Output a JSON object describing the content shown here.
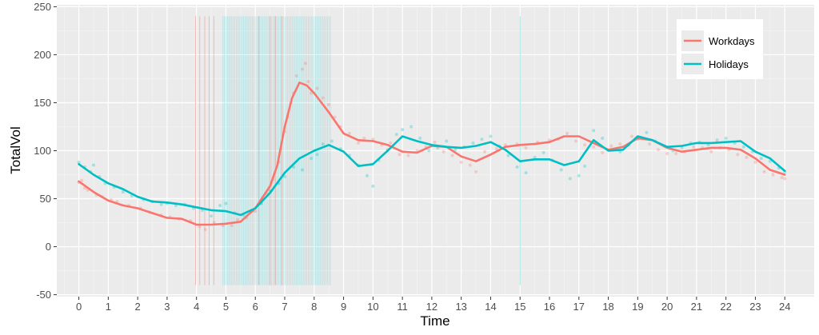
{
  "chart_data": {
    "type": "line",
    "xlabel": "Time",
    "ylabel": "TotalVol",
    "xlim": [
      -0.75,
      25.0
    ],
    "ylim": [
      -52,
      252
    ],
    "x_ticks": [
      0,
      1,
      2,
      3,
      4,
      5,
      6,
      7,
      8,
      9,
      10,
      11,
      12,
      13,
      14,
      15,
      16,
      17,
      18,
      19,
      20,
      21,
      22,
      23,
      24
    ],
    "y_ticks": [
      -50,
      0,
      50,
      100,
      150,
      200,
      250
    ],
    "grid": true,
    "legend_position": "top-right",
    "colors": {
      "Workdays": "#F8766D",
      "Holidays": "#00BFC4",
      "panel": "#EBEBEB",
      "grid": "#FFFFFF"
    },
    "series": [
      {
        "name": "Workdays",
        "x": [
          0,
          0.5,
          1,
          1.5,
          2,
          2.5,
          3,
          3.5,
          4,
          4.5,
          5,
          5.5,
          6,
          6.5,
          6.75,
          7,
          7.25,
          7.5,
          7.75,
          8,
          8.5,
          9,
          9.5,
          10,
          10.5,
          11,
          11.5,
          12,
          12.5,
          13,
          13.5,
          14,
          14.5,
          15,
          15.5,
          16,
          16.5,
          17,
          17.5,
          18,
          18.5,
          19,
          19.5,
          20,
          20.5,
          21,
          21.5,
          22,
          22.5,
          23,
          23.5,
          24
        ],
        "y": [
          68,
          57,
          48,
          43,
          40,
          35,
          30,
          29,
          23,
          23,
          24,
          26,
          40,
          63,
          85,
          125,
          155,
          171,
          168,
          160,
          140,
          118,
          111,
          110,
          106,
          99,
          98,
          105,
          104,
          94,
          89,
          96,
          104,
          106,
          107,
          109,
          115,
          115,
          108,
          101,
          104,
          113,
          111,
          103,
          99,
          101,
          103,
          103,
          101,
          92,
          80,
          75
        ]
      },
      {
        "name": "Holidays",
        "x": [
          0,
          0.5,
          1,
          1.5,
          2,
          2.5,
          3,
          3.5,
          4,
          4.5,
          5,
          5.5,
          6,
          6.5,
          7,
          7.5,
          8,
          8.5,
          9,
          9.5,
          10,
          10.5,
          11,
          11.5,
          12,
          12.5,
          13,
          13.5,
          14,
          14.5,
          15,
          15.5,
          16,
          16.5,
          17,
          17.5,
          18,
          18.5,
          19,
          19.5,
          20,
          20.5,
          21,
          21.5,
          22,
          22.5,
          23,
          23.5,
          24
        ],
        "y": [
          86,
          75,
          66,
          60,
          52,
          47,
          46,
          44,
          41,
          38,
          37,
          33,
          40,
          56,
          77,
          92,
          100,
          106,
          99,
          84,
          86,
          100,
          115,
          110,
          106,
          104,
          103,
          105,
          109,
          101,
          89,
          91,
          91,
          85,
          89,
          111,
          100,
          101,
          115,
          111,
          104,
          105,
          108,
          108,
          109,
          110,
          99,
          92,
          79
        ]
      }
    ],
    "workdays_points": [
      [
        0,
        67
      ],
      [
        0.1,
        69
      ],
      [
        0.2,
        61
      ],
      [
        0.3,
        59
      ],
      [
        0.6,
        54
      ],
      [
        0.8,
        52
      ],
      [
        1.1,
        49
      ],
      [
        1.3,
        47
      ],
      [
        1.7,
        43
      ],
      [
        2.1,
        40
      ],
      [
        2.4,
        36
      ],
      [
        2.8,
        33
      ],
      [
        3.1,
        31
      ],
      [
        3.4,
        29
      ],
      [
        3.8,
        27
      ],
      [
        4.1,
        21
      ],
      [
        4.3,
        18
      ],
      [
        4.6,
        25
      ],
      [
        4.9,
        22
      ],
      [
        5.2,
        22
      ],
      [
        5.4,
        28
      ],
      [
        5.7,
        30
      ],
      [
        6.0,
        37
      ],
      [
        6.2,
        45
      ],
      [
        6.4,
        55
      ],
      [
        6.6,
        70
      ],
      [
        6.8,
        88
      ],
      [
        7.0,
        120
      ],
      [
        7.1,
        135
      ],
      [
        7.3,
        160
      ],
      [
        7.4,
        178
      ],
      [
        7.6,
        185
      ],
      [
        7.7,
        191
      ],
      [
        7.8,
        172
      ],
      [
        7.9,
        160
      ],
      [
        8.1,
        165
      ],
      [
        8.3,
        155
      ],
      [
        8.5,
        148
      ],
      [
        8.7,
        135
      ],
      [
        8.9,
        125
      ],
      [
        9.2,
        118
      ],
      [
        9.5,
        108
      ],
      [
        9.7,
        113
      ],
      [
        10.0,
        112
      ],
      [
        10.3,
        106
      ],
      [
        10.6,
        108
      ],
      [
        10.9,
        96
      ],
      [
        11.2,
        95
      ],
      [
        11.5,
        100
      ],
      [
        11.8,
        104
      ],
      [
        12.1,
        109
      ],
      [
        12.4,
        99
      ],
      [
        12.7,
        95
      ],
      [
        13.0,
        88
      ],
      [
        13.3,
        85
      ],
      [
        13.5,
        78
      ],
      [
        13.8,
        99
      ],
      [
        14.2,
        102
      ],
      [
        14.5,
        106
      ],
      [
        14.9,
        107
      ],
      [
        15.2,
        103
      ],
      [
        15.6,
        109
      ],
      [
        16.0,
        111
      ],
      [
        16.3,
        112
      ],
      [
        16.6,
        118
      ],
      [
        16.9,
        110
      ],
      [
        17.2,
        106
      ],
      [
        17.5,
        104
      ],
      [
        17.8,
        98
      ],
      [
        18.1,
        105
      ],
      [
        18.4,
        107
      ],
      [
        18.8,
        115
      ],
      [
        19.1,
        114
      ],
      [
        19.4,
        107
      ],
      [
        19.7,
        101
      ],
      [
        20.0,
        97
      ],
      [
        20.3,
        97
      ],
      [
        20.6,
        99
      ],
      [
        20.9,
        104
      ],
      [
        21.2,
        103
      ],
      [
        21.5,
        99
      ],
      [
        21.8,
        103
      ],
      [
        22.1,
        101
      ],
      [
        22.4,
        96
      ],
      [
        22.7,
        93
      ],
      [
        23.0,
        88
      ],
      [
        23.3,
        78
      ],
      [
        23.6,
        75
      ],
      [
        23.9,
        72
      ],
      [
        24.0,
        71
      ]
    ],
    "holidays_points": [
      [
        0,
        88
      ],
      [
        0.2,
        83
      ],
      [
        0.4,
        78
      ],
      [
        0.5,
        85
      ],
      [
        0.7,
        73
      ],
      [
        0.9,
        66
      ],
      [
        1.2,
        62
      ],
      [
        1.5,
        57
      ],
      [
        1.8,
        53
      ],
      [
        2.2,
        49
      ],
      [
        2.5,
        47
      ],
      [
        2.8,
        44
      ],
      [
        3.0,
        45
      ],
      [
        3.3,
        43
      ],
      [
        3.6,
        44
      ],
      [
        3.9,
        40
      ],
      [
        4.2,
        38
      ],
      [
        4.5,
        32
      ],
      [
        4.8,
        43
      ],
      [
        5.0,
        45
      ],
      [
        5.3,
        35
      ],
      [
        5.6,
        33
      ],
      [
        5.9,
        37
      ],
      [
        6.2,
        45
      ],
      [
        6.5,
        58
      ],
      [
        6.8,
        66
      ],
      [
        7.0,
        73
      ],
      [
        7.3,
        83
      ],
      [
        7.6,
        80
      ],
      [
        7.9,
        92
      ],
      [
        8.1,
        96
      ],
      [
        8.3,
        107
      ],
      [
        8.6,
        110
      ],
      [
        8.9,
        102
      ],
      [
        9.2,
        95
      ],
      [
        9.5,
        85
      ],
      [
        9.8,
        74
      ],
      [
        10.0,
        63
      ],
      [
        10.2,
        90
      ],
      [
        10.5,
        101
      ],
      [
        10.8,
        117
      ],
      [
        11.0,
        122
      ],
      [
        11.3,
        125
      ],
      [
        11.6,
        113
      ],
      [
        11.9,
        100
      ],
      [
        12.2,
        103
      ],
      [
        12.5,
        110
      ],
      [
        12.8,
        101
      ],
      [
        13.1,
        104
      ],
      [
        13.4,
        108
      ],
      [
        13.7,
        112
      ],
      [
        14.0,
        115
      ],
      [
        14.3,
        105
      ],
      [
        14.6,
        95
      ],
      [
        14.9,
        83
      ],
      [
        15.2,
        77
      ],
      [
        15.5,
        93
      ],
      [
        15.8,
        98
      ],
      [
        16.1,
        90
      ],
      [
        16.4,
        80
      ],
      [
        16.7,
        71
      ],
      [
        17.0,
        74
      ],
      [
        17.2,
        84
      ],
      [
        17.5,
        121
      ],
      [
        17.8,
        113
      ],
      [
        18.1,
        101
      ],
      [
        18.4,
        99
      ],
      [
        18.7,
        106
      ],
      [
        19.0,
        112
      ],
      [
        19.3,
        119
      ],
      [
        19.6,
        110
      ],
      [
        19.9,
        105
      ],
      [
        20.2,
        100
      ],
      [
        20.5,
        103
      ],
      [
        20.8,
        108
      ],
      [
        21.1,
        109
      ],
      [
        21.4,
        106
      ],
      [
        21.7,
        111
      ],
      [
        22.0,
        113
      ],
      [
        22.3,
        108
      ],
      [
        22.6,
        104
      ],
      [
        22.9,
        99
      ],
      [
        23.2,
        92
      ],
      [
        23.5,
        89
      ],
      [
        23.8,
        82
      ],
      [
        24.0,
        78
      ]
    ],
    "workdays_verticals": [
      3.97,
      4.11,
      4.28,
      4.43,
      4.59,
      6.12,
      6.5,
      6.68,
      6.9
    ],
    "holidays_verticals_range": [
      4.9,
      8.55
    ],
    "holidays_verticals_extra": [
      15.0
    ],
    "vertical_span_y": [
      -40,
      240
    ]
  }
}
